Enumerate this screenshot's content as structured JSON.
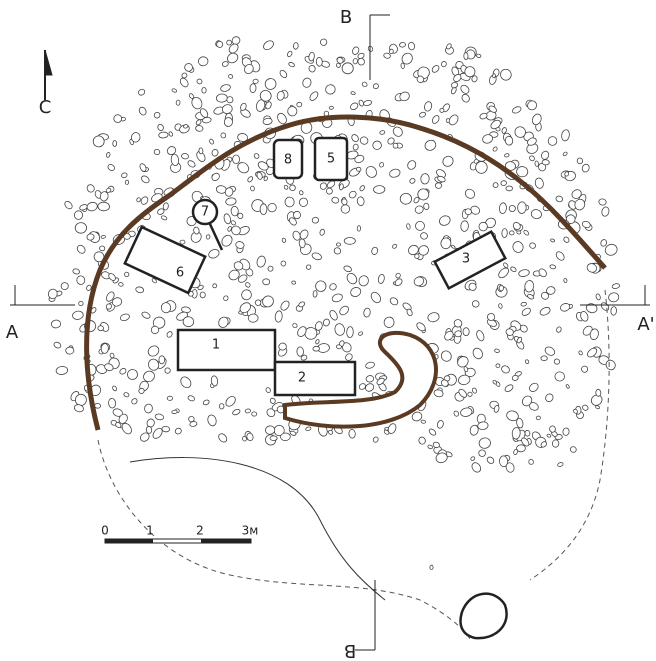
{
  "north": "C",
  "sections": {
    "a_left": "A",
    "a_right": "A'",
    "b_top": "B",
    "b_bottom": "B"
  },
  "graves": [
    {
      "label": "1"
    },
    {
      "label": "2"
    },
    {
      "label": "3"
    },
    {
      "label": "5"
    },
    {
      "label": "6"
    },
    {
      "label": "7"
    },
    {
      "label": "8"
    }
  ],
  "scale": {
    "ticks": [
      "0",
      "1",
      "2",
      "3м"
    ]
  }
}
